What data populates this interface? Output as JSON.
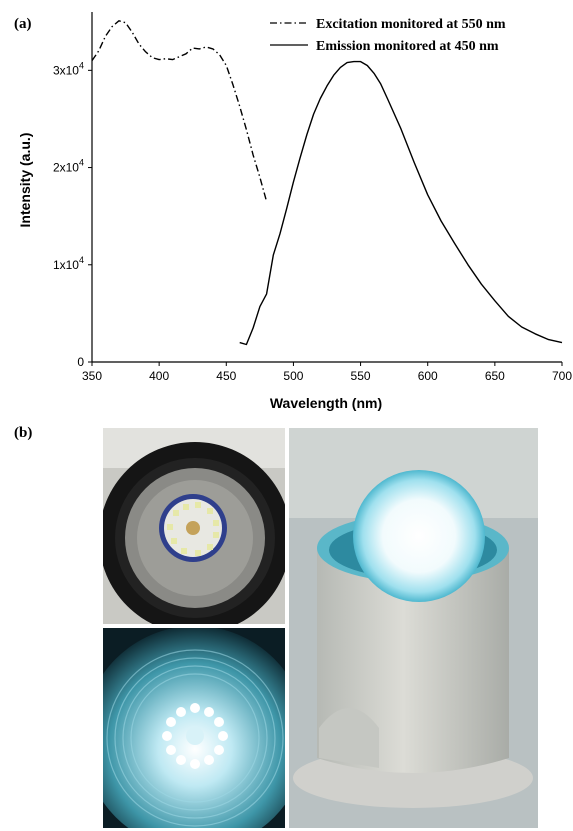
{
  "figure": {
    "panel_a_label": "(a)",
    "panel_b_label": "(b)"
  },
  "chart_data": {
    "type": "line",
    "xlabel": "Wavelength (nm)",
    "ylabel": "Intensity (a.u.)",
    "xlim": [
      350,
      700
    ],
    "ylim": [
      0,
      36000
    ],
    "x_ticks": [
      350,
      400,
      450,
      500,
      550,
      600,
      650,
      700
    ],
    "y_ticks": [
      {
        "value": 0,
        "label": "0"
      },
      {
        "value": 10000,
        "label": "1x10",
        "exp": "4"
      },
      {
        "value": 20000,
        "label": "2x10",
        "exp": "4"
      },
      {
        "value": 30000,
        "label": "3x10",
        "exp": "4"
      }
    ],
    "grid": false,
    "legend_position": "top-right",
    "series": [
      {
        "name": "Excitation monitored at 550 nm",
        "style": "dash-dot",
        "x": [
          350,
          355,
          360,
          365,
          370,
          375,
          380,
          385,
          390,
          395,
          400,
          405,
          410,
          415,
          420,
          425,
          430,
          435,
          440,
          445,
          450,
          455,
          460,
          465,
          470,
          475,
          480
        ],
        "y": [
          31000,
          32000,
          33500,
          34500,
          35100,
          34900,
          33900,
          32700,
          31900,
          31300,
          31100,
          31200,
          31100,
          31400,
          31700,
          32300,
          32200,
          32400,
          32200,
          31600,
          30500,
          28500,
          26300,
          23900,
          21300,
          19000,
          16500
        ]
      },
      {
        "name": "Emission monitored at 450 nm",
        "style": "solid",
        "x": [
          460,
          465,
          470,
          475,
          480,
          485,
          490,
          495,
          500,
          505,
          510,
          515,
          520,
          525,
          530,
          535,
          540,
          545,
          550,
          555,
          560,
          565,
          570,
          580,
          590,
          600,
          610,
          620,
          630,
          640,
          650,
          660,
          670,
          680,
          690,
          700
        ],
        "y": [
          2000,
          1800,
          3500,
          5700,
          7000,
          11000,
          13200,
          15800,
          18500,
          21000,
          23400,
          25500,
          27100,
          28400,
          29500,
          30300,
          30800,
          30900,
          30900,
          30500,
          29700,
          28600,
          27100,
          24000,
          20500,
          17200,
          14500,
          12200,
          10000,
          8000,
          6300,
          4700,
          3600,
          2900,
          2300,
          2000
        ]
      }
    ]
  },
  "photos": {
    "top_left": "LED module in black housing (unlit)",
    "bottom_left": "LED module lit, blue glow",
    "right": "Lamp with glowing bulb in white cylindrical housing"
  },
  "colors": {
    "line": "#000000",
    "glow_blue": "#7ec8d8",
    "housing_white": "#d6d7d2"
  }
}
